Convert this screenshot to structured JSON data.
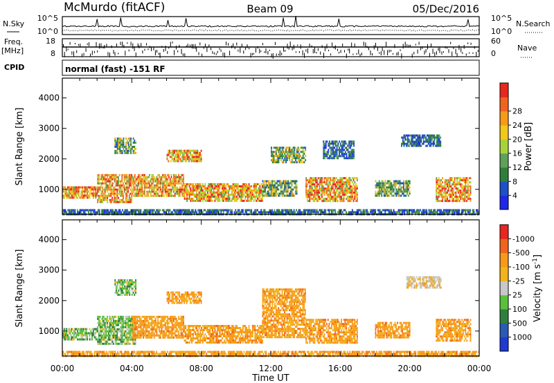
{
  "header": {
    "station": "McMurdo (fitACF)",
    "beam": "Beam 09",
    "date": "05/Dec/2016"
  },
  "noise_panel": {
    "left_label": "N.Sky",
    "right_label": "N.Search",
    "ticks_left": [
      "10^5",
      "10^0"
    ],
    "ticks_right": [
      "10^5",
      "10^0"
    ]
  },
  "freq_panel": {
    "left_label_top": "Freq.",
    "left_label_bottom": "[MHz]",
    "right_label": "Nave",
    "ticks_left": [
      "18",
      "8"
    ],
    "ticks_right": [
      "60",
      "0"
    ]
  },
  "cpid": {
    "label": "CPID",
    "text": "normal (fast) -151 RF"
  },
  "chart_data": [
    {
      "type": "heatmap",
      "panel": "power",
      "ylabel": "Slant Range [km]",
      "xlabel": "",
      "x_ticks": [
        "00:00",
        "04:00",
        "08:00",
        "12:00",
        "16:00",
        "20:00",
        "00:00"
      ],
      "x_range_hours": [
        0,
        24
      ],
      "y_ticks": [
        1000,
        2000,
        3000,
        4000
      ],
      "ylim": [
        180,
        4650
      ],
      "colorbar": {
        "label": "Power [dB]",
        "tick_labels": [
          "4",
          "8",
          "12",
          "16",
          "20",
          "24",
          "28"
        ],
        "colors": [
          "#1f28e8",
          "#1e50c8",
          "#2f7f3c",
          "#5fa05a",
          "#a8d23c",
          "#f2c81a",
          "#f79a1a",
          "#f0641e",
          "#e8281e"
        ]
      },
      "regions": [
        {
          "t": [
            0.0,
            2.0
          ],
          "range_km": [
            700,
            1100
          ],
          "level": "high"
        },
        {
          "t": [
            2.0,
            4.0
          ],
          "range_km": [
            600,
            1500
          ],
          "level": "high"
        },
        {
          "t": [
            3.0,
            4.2
          ],
          "range_km": [
            2200,
            2700
          ],
          "level": "medium"
        },
        {
          "t": [
            4.0,
            7.0
          ],
          "range_km": [
            800,
            1500
          ],
          "level": "high"
        },
        {
          "t": [
            6.0,
            8.0
          ],
          "range_km": [
            1900,
            2300
          ],
          "level": "high"
        },
        {
          "t": [
            7.0,
            11.5
          ],
          "range_km": [
            600,
            1200
          ],
          "level": "high"
        },
        {
          "t": [
            11.5,
            13.5
          ],
          "range_km": [
            800,
            1300
          ],
          "level": "medium"
        },
        {
          "t": [
            12.0,
            14.0
          ],
          "range_km": [
            1900,
            2400
          ],
          "level": "medium"
        },
        {
          "t": [
            14.0,
            17.0
          ],
          "range_km": [
            600,
            1400
          ],
          "level": "high"
        },
        {
          "t": [
            15.0,
            16.8
          ],
          "range_km": [
            2000,
            2600
          ],
          "level": "low"
        },
        {
          "t": [
            18.0,
            20.0
          ],
          "range_km": [
            800,
            1300
          ],
          "level": "medium"
        },
        {
          "t": [
            19.5,
            21.8
          ],
          "range_km": [
            2400,
            2800
          ],
          "level": "low"
        },
        {
          "t": [
            21.5,
            23.5
          ],
          "range_km": [
            600,
            1400
          ],
          "level": "high"
        },
        {
          "t": [
            0.0,
            24.0
          ],
          "range_km": [
            180,
            350
          ],
          "level": "low"
        }
      ]
    },
    {
      "type": "heatmap",
      "panel": "velocity",
      "ylabel": "Slant Range [km]",
      "xlabel": "Time UT",
      "x_ticks": [
        "00:00",
        "04:00",
        "08:00",
        "12:00",
        "16:00",
        "20:00",
        "00:00"
      ],
      "x_range_hours": [
        0,
        24
      ],
      "y_ticks": [
        1000,
        2000,
        3000,
        4000
      ],
      "ylim": [
        180,
        4650
      ],
      "colorbar": {
        "label": "Velocity [m s^-1]",
        "tick_labels": [
          "1000",
          "500",
          "100",
          "25",
          "-25",
          "-100",
          "-500",
          "-1000"
        ],
        "colors": [
          "#1e3ad2",
          "#2a5ab4",
          "#2f7f3c",
          "#5ac03c",
          "#c8c8c8",
          "#f2b41a",
          "#f79a1a",
          "#f0641e",
          "#e8281e"
        ]
      },
      "regions": [
        {
          "t": [
            0.0,
            2.0
          ],
          "range_km": [
            700,
            1100
          ],
          "level": "green"
        },
        {
          "t": [
            2.0,
            4.2
          ],
          "range_km": [
            600,
            1500
          ],
          "level": "green"
        },
        {
          "t": [
            3.0,
            4.2
          ],
          "range_km": [
            2200,
            2700
          ],
          "level": "green"
        },
        {
          "t": [
            4.0,
            7.0
          ],
          "range_km": [
            800,
            1500
          ],
          "level": "orange"
        },
        {
          "t": [
            6.0,
            8.0
          ],
          "range_km": [
            1900,
            2300
          ],
          "level": "orange"
        },
        {
          "t": [
            7.0,
            11.5
          ],
          "range_km": [
            600,
            1200
          ],
          "level": "orange"
        },
        {
          "t": [
            11.5,
            14.0
          ],
          "range_km": [
            800,
            2400
          ],
          "level": "orange"
        },
        {
          "t": [
            14.0,
            17.0
          ],
          "range_km": [
            600,
            1400
          ],
          "level": "orange"
        },
        {
          "t": [
            18.0,
            20.0
          ],
          "range_km": [
            800,
            1300
          ],
          "level": "orange"
        },
        {
          "t": [
            19.8,
            21.8
          ],
          "range_km": [
            2400,
            2800
          ],
          "level": "gray"
        },
        {
          "t": [
            21.5,
            23.5
          ],
          "range_km": [
            700,
            1400
          ],
          "level": "orange"
        },
        {
          "t": [
            0.0,
            24.0
          ],
          "range_km": [
            180,
            350
          ],
          "level": "orange"
        }
      ]
    }
  ]
}
